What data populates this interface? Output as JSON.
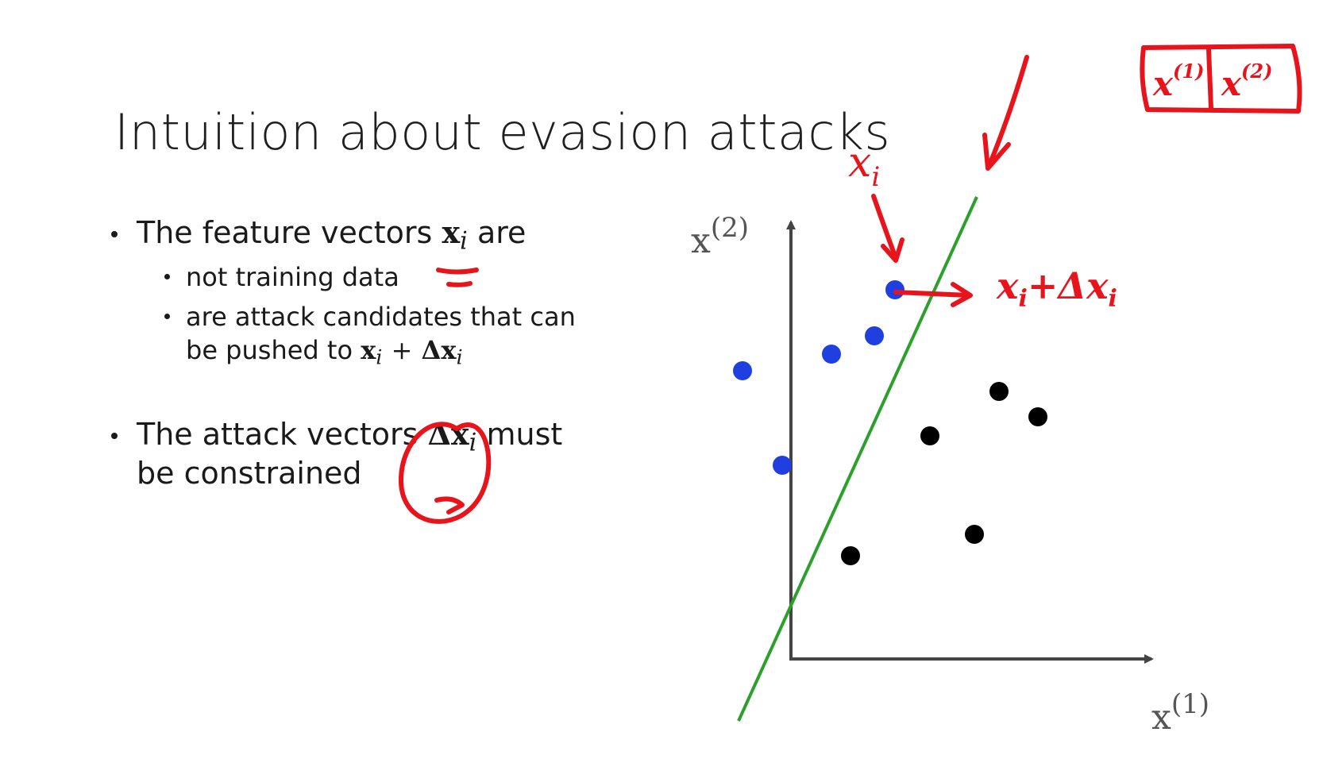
{
  "slide": {
    "title": "Intuition about evasion attacks",
    "bullet1": {
      "text_before": "The feature vectors",
      "math": "x",
      "math_sub": "i",
      "text_after": "are",
      "sub1": "not training data",
      "sub2_line1": "are attack candidates that can",
      "sub2_line2_text": "be pushed to",
      "sub2_math_a": "x",
      "sub2_math_a_sub": "i",
      "sub2_op": "+",
      "sub2_math_b": "Δx",
      "sub2_math_b_sub": "i"
    },
    "bullet2": {
      "text_before": "The attack vectors",
      "math": "Δx",
      "math_sub": "i",
      "text_after": "must",
      "line2": "be constrained"
    }
  },
  "plot": {
    "y_label": "x",
    "y_label_sup": "(2)",
    "x_label": "x",
    "x_label_sup": "(1)",
    "blue_points_color": "#1f3fe0",
    "black_points_color": "#000000",
    "boundary_color": "#2ca02c"
  },
  "annotations": {
    "ink_color": "#e8141c",
    "xi_label": "x",
    "xi_sub": "i",
    "shift_label": "x",
    "shift_label_sub": "i",
    "shift_plus": "+",
    "shift_delta": "Δx",
    "shift_delta_sub": "i",
    "box_cell1": "x",
    "box_cell1_sup": "(1)",
    "box_cell2": "x",
    "box_cell2_sup": "(2)"
  }
}
